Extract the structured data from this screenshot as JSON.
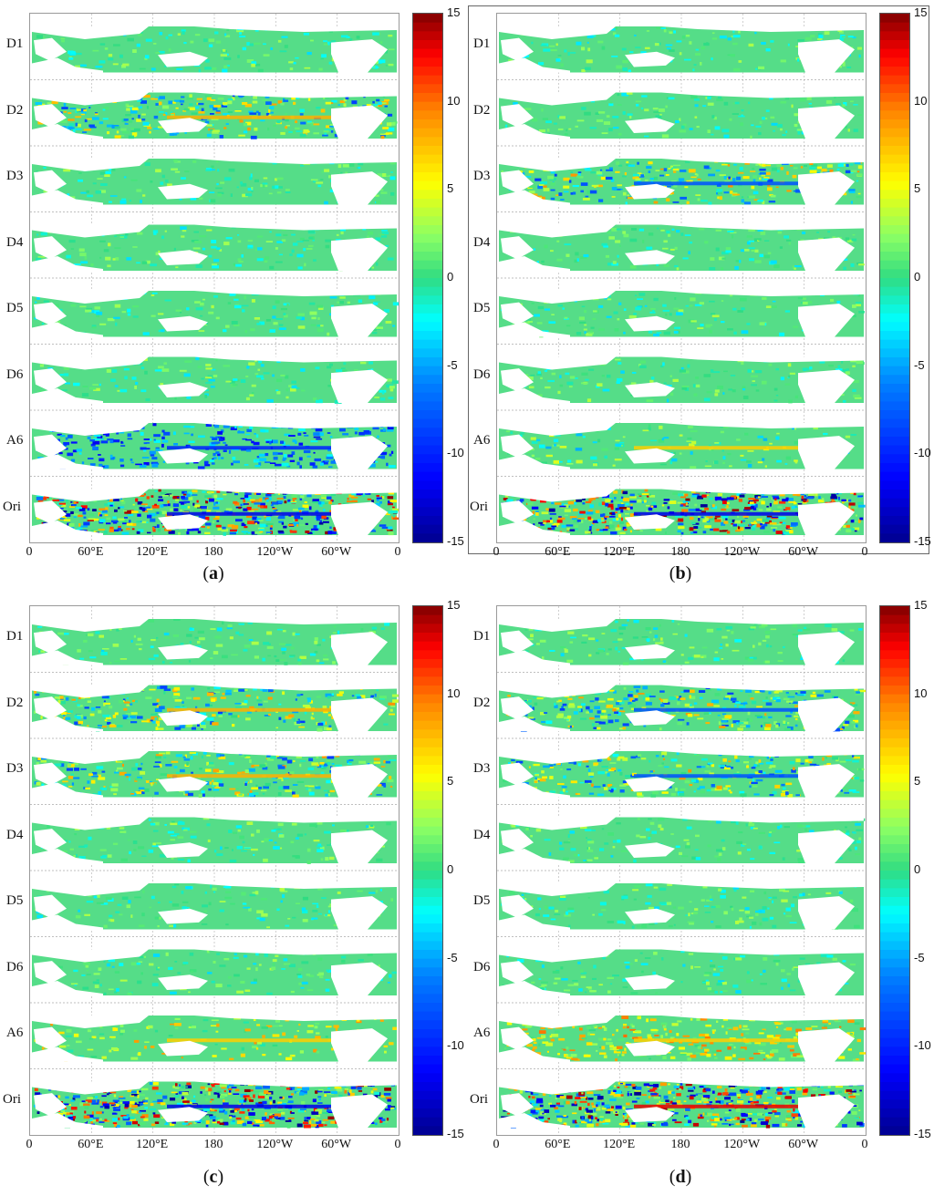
{
  "figure": {
    "row_labels": [
      "D1",
      "D2",
      "D3",
      "D4",
      "D5",
      "D6",
      "A6",
      "Ori"
    ],
    "x_ticks": [
      "0",
      "60°E",
      "120°E",
      "180",
      "120°W",
      "60°W",
      "0"
    ],
    "colorbar": {
      "ticks": [
        "15",
        "10",
        "5",
        "0",
        "-5",
        "-10",
        "-15"
      ],
      "min": -15,
      "max": 15,
      "colormap": [
        "#00008f",
        "#0000ff",
        "#0080ff",
        "#00ffff",
        "#30d090",
        "#80ff80",
        "#ffff00",
        "#ff8000",
        "#ff0000",
        "#800000"
      ]
    },
    "panels": [
      {
        "id": "a",
        "caption": "a",
        "ori_intensity": 1.0,
        "a6_tone": "blue",
        "strong_rows": [
          1,
          6,
          7
        ]
      },
      {
        "id": "b",
        "caption": "b",
        "ori_intensity": 1.0,
        "a6_tone": "neutral",
        "strong_rows": [
          2,
          7
        ]
      },
      {
        "id": "c",
        "caption": "c",
        "ori_intensity": 1.0,
        "a6_tone": "warm",
        "strong_rows": [
          1,
          2,
          7
        ]
      },
      {
        "id": "d",
        "caption": "d",
        "ori_intensity": 1.0,
        "a6_tone": "yellow",
        "strong_rows": [
          1,
          2,
          6,
          7
        ]
      }
    ]
  }
}
